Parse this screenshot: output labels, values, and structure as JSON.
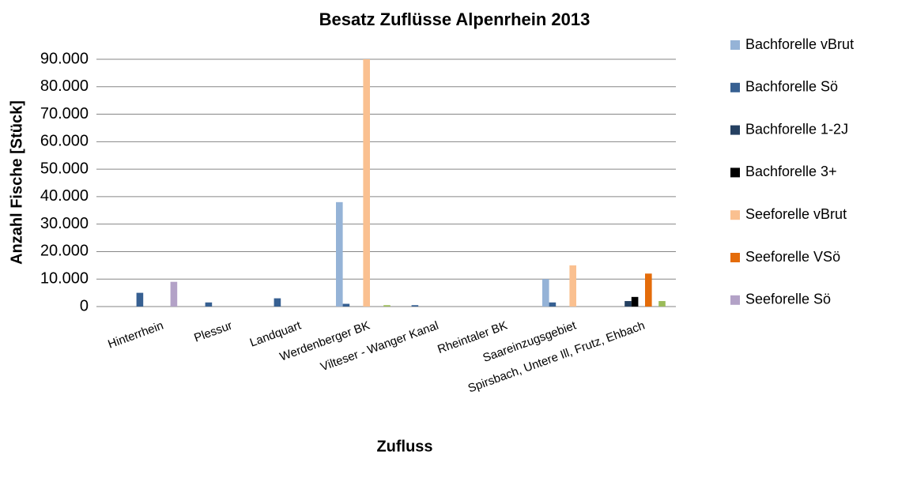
{
  "chart_data": {
    "type": "bar",
    "title": "Besatz Zuflüsse Alpenrhein 2013",
    "x_label": "Zufluss",
    "y_label": "Anzahl Fische [Stück]",
    "categories": [
      "Hinterrhein",
      "Plessur",
      "Landquart",
      "Werdenberger BK",
      "Vilteser - Wanger Kanal",
      "Rheintaler BK",
      "Saareinzugsgebiet",
      "Spirsbach, Untere Ill, Frutz, Ehbach"
    ],
    "series": [
      {
        "name": "Bachforelle vBrut",
        "color": "#95b3d7",
        "values": [
          0,
          0,
          0,
          38000,
          0,
          0,
          10000,
          0
        ]
      },
      {
        "name": "Bachforelle Sö",
        "color": "#376092",
        "values": [
          5000,
          1500,
          3000,
          1000,
          500,
          0,
          1500,
          0
        ]
      },
      {
        "name": "Bachforelle 1-2J",
        "color": "#254061",
        "values": [
          0,
          0,
          0,
          0,
          0,
          0,
          0,
          2000
        ]
      },
      {
        "name": "Bachforelle 3+",
        "color": "#000000",
        "values": [
          0,
          0,
          0,
          0,
          0,
          0,
          0,
          3500
        ]
      },
      {
        "name": "Seeforelle vBrut",
        "color": "#fac090",
        "values": [
          0,
          0,
          0,
          90000,
          0,
          0,
          15000,
          0
        ]
      },
      {
        "name": "Seeforelle VSö",
        "color": "#e46c0a",
        "values": [
          0,
          0,
          0,
          0,
          0,
          0,
          0,
          12000
        ]
      },
      {
        "name": "Seeforelle Sö",
        "color": "#b3a2c7",
        "values": [
          9000,
          0,
          0,
          0,
          0,
          0,
          0,
          0
        ]
      },
      {
        "color": "#9bbb59",
        "values": [
          0,
          0,
          0,
          500,
          0,
          0,
          0,
          2000
        ]
      }
    ],
    "ylim": [
      0,
      90000
    ],
    "yticks": [
      0,
      {
        "value": 10000,
        "label": "10.000"
      },
      {
        "value": 20000,
        "label": "20.000"
      },
      {
        "value": 30000,
        "label": "30.000"
      },
      {
        "value": 40000,
        "label": "40.000"
      },
      {
        "value": 50000,
        "label": "50.000"
      },
      {
        "value": 60000,
        "label": "60.000"
      },
      {
        "value": 70000,
        "label": "70.000"
      },
      {
        "value": 80000,
        "label": "80.000"
      },
      {
        "value": 90000,
        "label": "90.000"
      }
    ],
    "grid": true,
    "legend": "right"
  }
}
